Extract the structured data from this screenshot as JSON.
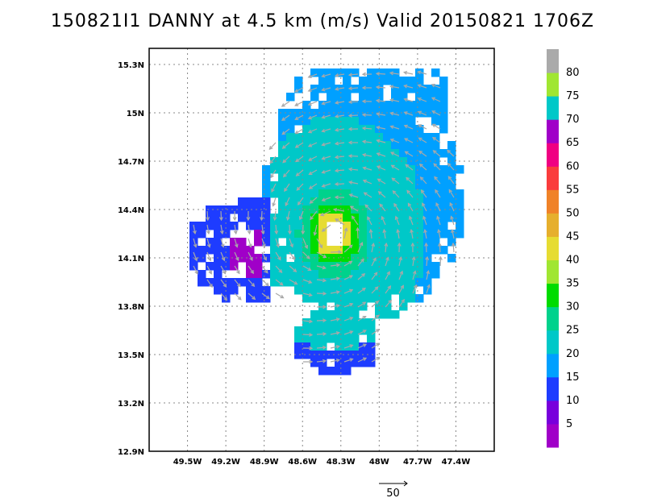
{
  "title": "150821I1 DANNY at 4.5 km (m/s) Valid 20150821 1706Z",
  "map": {
    "lon_range": [
      -49.8,
      -47.1
    ],
    "lat_range": [
      12.9,
      15.4
    ],
    "lon_ticks": [
      {
        "value": -49.5,
        "label": "49.5W"
      },
      {
        "value": -49.2,
        "label": "49.2W"
      },
      {
        "value": -48.9,
        "label": "48.9W"
      },
      {
        "value": -48.6,
        "label": "48.6W"
      },
      {
        "value": -48.3,
        "label": "48.3W"
      },
      {
        "value": -48.0,
        "label": "48W"
      },
      {
        "value": -47.7,
        "label": "47.7W"
      },
      {
        "value": -47.4,
        "label": "47.4W"
      }
    ],
    "lat_ticks": [
      {
        "value": 15.3,
        "label": "15.3N"
      },
      {
        "value": 15.0,
        "label": "15N"
      },
      {
        "value": 14.7,
        "label": "14.7N"
      },
      {
        "value": 14.4,
        "label": "14.4N"
      },
      {
        "value": 14.1,
        "label": "14.1N"
      },
      {
        "value": 13.8,
        "label": "13.8N"
      },
      {
        "value": 13.5,
        "label": "13.5N"
      },
      {
        "value": 13.2,
        "label": "13.2N"
      },
      {
        "value": 12.9,
        "label": "12.9N"
      }
    ],
    "grid": true,
    "storm_center": {
      "lon": -48.35,
      "lat": 14.25
    },
    "vector_reference": {
      "label": "50",
      "value": 50
    }
  },
  "colorbar": {
    "bins": [
      {
        "color": "#a000c8",
        "label": "5"
      },
      {
        "color": "#7800dc",
        "label": "10"
      },
      {
        "color": "#1e3cff",
        "label": "15"
      },
      {
        "color": "#00a0ff",
        "label": "20"
      },
      {
        "color": "#00c8c8",
        "label": "25"
      },
      {
        "color": "#00d28c",
        "label": "30"
      },
      {
        "color": "#00dc00",
        "label": "35"
      },
      {
        "color": "#a0e632",
        "label": "40"
      },
      {
        "color": "#e6dc32",
        "label": "45"
      },
      {
        "color": "#e6af2d",
        "label": "50"
      },
      {
        "color": "#f08228",
        "label": "55"
      },
      {
        "color": "#fa3c3c",
        "label": "60"
      },
      {
        "color": "#f00082",
        "label": "65"
      },
      {
        "color": "#a000c8",
        "label": "70"
      },
      {
        "color": "#00c8c8",
        "label": "75"
      },
      {
        "color": "#a0e632",
        "label": "80"
      },
      {
        "color": "#aaaaaa",
        "label": ""
      }
    ]
  }
}
